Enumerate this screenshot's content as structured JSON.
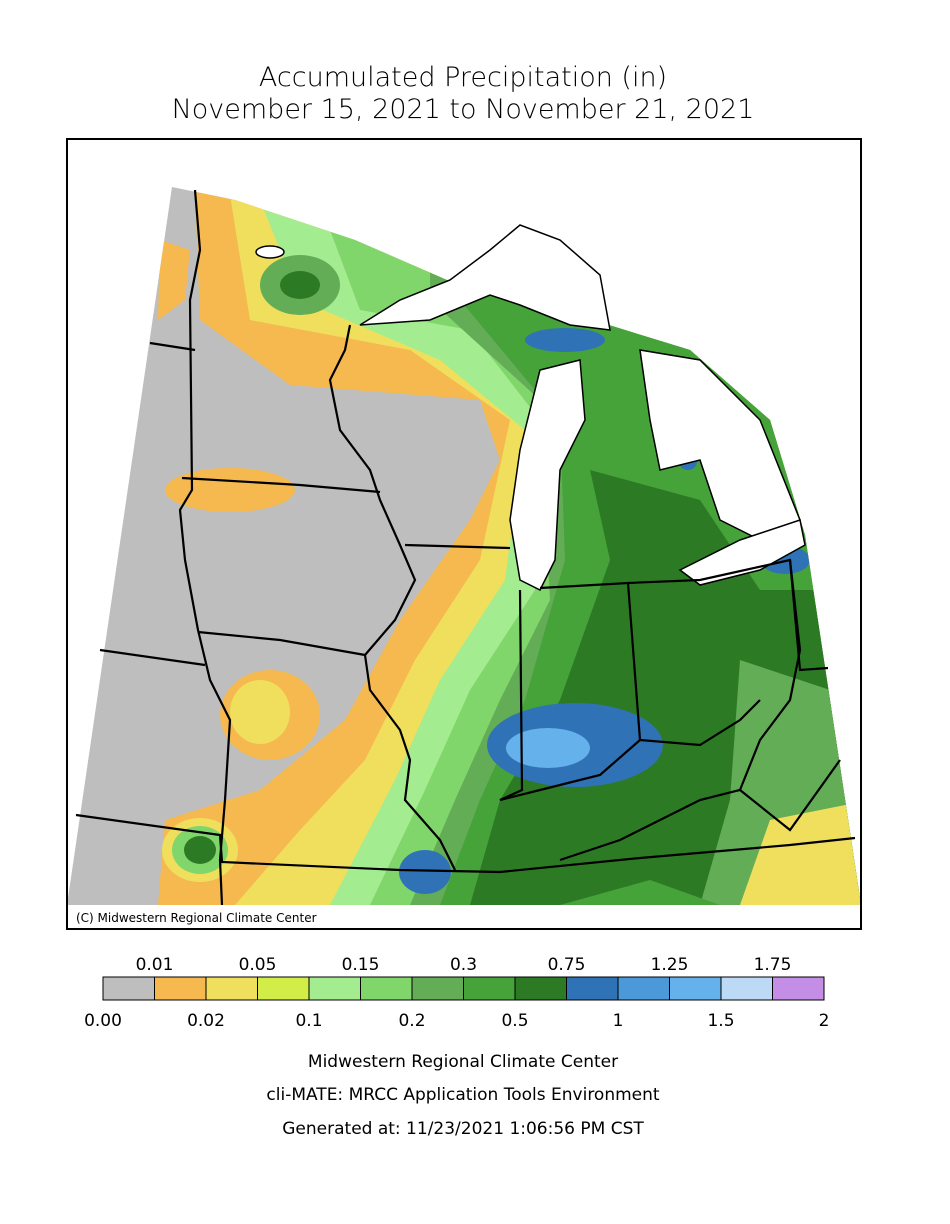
{
  "title": [
    "Accumulated Precipitation (in)",
    "November 15, 2021 to November 21, 2021"
  ],
  "map": {
    "credit": "(C) Midwestern Regional Climate Center"
  },
  "legend": {
    "boundaries": [
      "0.00",
      "0.01",
      "0.02",
      "0.05",
      "0.1",
      "0.15",
      "0.2",
      "0.3",
      "0.5",
      "0.75",
      "1",
      "1.25",
      "1.5",
      "1.75",
      "2"
    ],
    "colors": [
      "#bebebe",
      "#f5b94f",
      "#f0df5c",
      "#d2ec48",
      "#a3ec8f",
      "#80d66a",
      "#63ad57",
      "#45a33a",
      "#2c7b24",
      "#2f72b5",
      "#4b99d9",
      "#64b1eb",
      "#bcdaf6",
      "#c48ee6"
    ]
  },
  "footer": [
    "Midwestern Regional Climate Center",
    "cli-MATE: MRCC Application Tools Environment",
    "Generated at: 11/23/2021 1:06:56 PM CST"
  ]
}
